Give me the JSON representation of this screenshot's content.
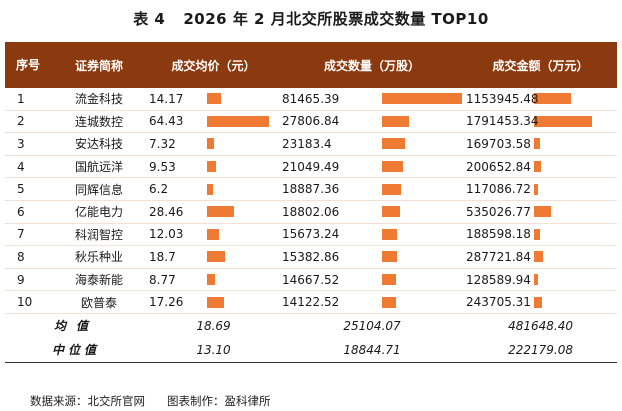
{
  "title": {
    "label": "表 4",
    "text": "2026 年 2 月北交所股票成交数量 TOP10"
  },
  "headers": {
    "index": "序号",
    "name": "证券简称",
    "price": "成交均价（元）",
    "volume": "成交数量（万股）",
    "amount": "成交金额（万元）"
  },
  "rows": [
    {
      "idx": "1",
      "name": "流金科技",
      "price": "14.17",
      "volume": "81465.39",
      "amount": "1153945.48"
    },
    {
      "idx": "2",
      "name": "连城数控",
      "price": "64.43",
      "volume": "27806.84",
      "amount": "1791453.34"
    },
    {
      "idx": "3",
      "name": "安达科技",
      "price": "7.32",
      "volume": "23183.4",
      "amount": "169703.58"
    },
    {
      "idx": "4",
      "name": "国航远洋",
      "price": "9.53",
      "volume": "21049.49",
      "amount": "200652.84"
    },
    {
      "idx": "5",
      "name": "同辉信息",
      "price": "6.2",
      "volume": "18887.36",
      "amount": "117086.72"
    },
    {
      "idx": "6",
      "name": "亿能电力",
      "price": "28.46",
      "volume": "18802.06",
      "amount": "535026.77"
    },
    {
      "idx": "7",
      "name": "科润智控",
      "price": "12.03",
      "volume": "15673.24",
      "amount": "188598.18"
    },
    {
      "idx": "8",
      "name": "秋乐种业",
      "price": "18.7",
      "volume": "15382.86",
      "amount": "287721.84"
    },
    {
      "idx": "9",
      "name": "海泰新能",
      "price": "8.77",
      "volume": "14667.52",
      "amount": "128589.94"
    },
    {
      "idx": "10",
      "name": "欧普泰",
      "price": "17.26",
      "volume": "14122.52",
      "amount": "243705.31"
    }
  ],
  "summary": {
    "mean_label": "均值",
    "mean_price": "18.69",
    "mean_volume": "25104.07",
    "mean_amount": "481648.40",
    "median_label": "中位值",
    "median_price": "13.10",
    "median_volume": "18844.71",
    "median_amount": "222179.08"
  },
  "footer": {
    "source": "数据来源：北交所官网",
    "author": "图表制作：盈科律所"
  },
  "colors": {
    "header_bg": "#8b3a0f",
    "bar": "#ee7a33"
  }
}
